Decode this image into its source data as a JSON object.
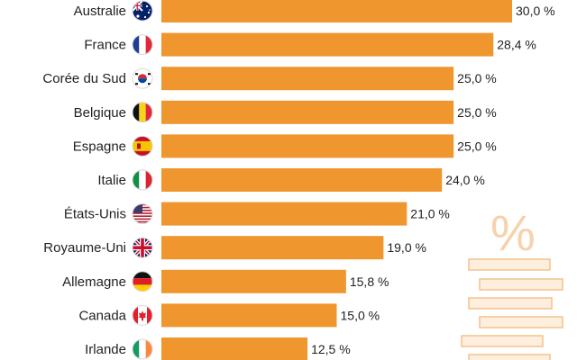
{
  "chart_data": {
    "type": "bar",
    "orientation": "horizontal",
    "categories": [
      "Australie",
      "France",
      "Corée du Sud",
      "Belgique",
      "Espagne",
      "Italie",
      "États-Unis",
      "Royaume-Uni",
      "Allemagne",
      "Canada",
      "Irlande"
    ],
    "values": [
      30.0,
      28.4,
      25.0,
      25.0,
      25.0,
      24.0,
      21.0,
      19.0,
      15.8,
      15.0,
      12.5
    ],
    "value_labels": [
      "30,0 %",
      "28,4 %",
      "25,0 %",
      "25,0 %",
      "25,0 %",
      "24,0 %",
      "21,0 %",
      "19,0 %",
      "15,8 %",
      "15,0 %",
      "12,5 %"
    ],
    "flag_icons": [
      "australia-flag-icon",
      "france-flag-icon",
      "south-korea-flag-icon",
      "belgium-flag-icon",
      "spain-flag-icon",
      "italy-flag-icon",
      "usa-flag-icon",
      "uk-flag-icon",
      "germany-flag-icon",
      "canada-flag-icon",
      "ireland-flag-icon"
    ],
    "bar_color": "#f0962e",
    "xlim": [
      0,
      30
    ],
    "grid": false,
    "legend": "none"
  },
  "decoration": {
    "icon": "percent-stack-icon",
    "symbol": "%"
  }
}
